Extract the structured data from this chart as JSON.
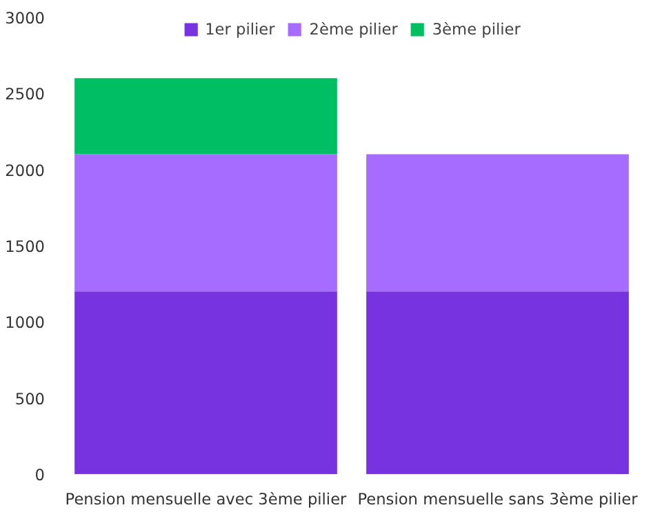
{
  "chart_data": {
    "type": "bar",
    "stacked": true,
    "categories": [
      "Pension mensuelle avec 3ème pilier",
      "Pension mensuelle sans 3ème pilier"
    ],
    "series": [
      {
        "name": "1er pilier",
        "color": "#7733e0",
        "values": [
          1200,
          1200
        ]
      },
      {
        "name": "2ème pilier",
        "color": "#a66bff",
        "values": [
          900,
          900
        ]
      },
      {
        "name": "3ème pilier",
        "color": "#00bf63",
        "values": [
          500,
          null
        ]
      }
    ],
    "ylim": [
      0,
      3000
    ],
    "yticks": [
      0,
      500,
      1000,
      1500,
      2000,
      2500,
      3000
    ],
    "grid": false,
    "legend": "top"
  }
}
